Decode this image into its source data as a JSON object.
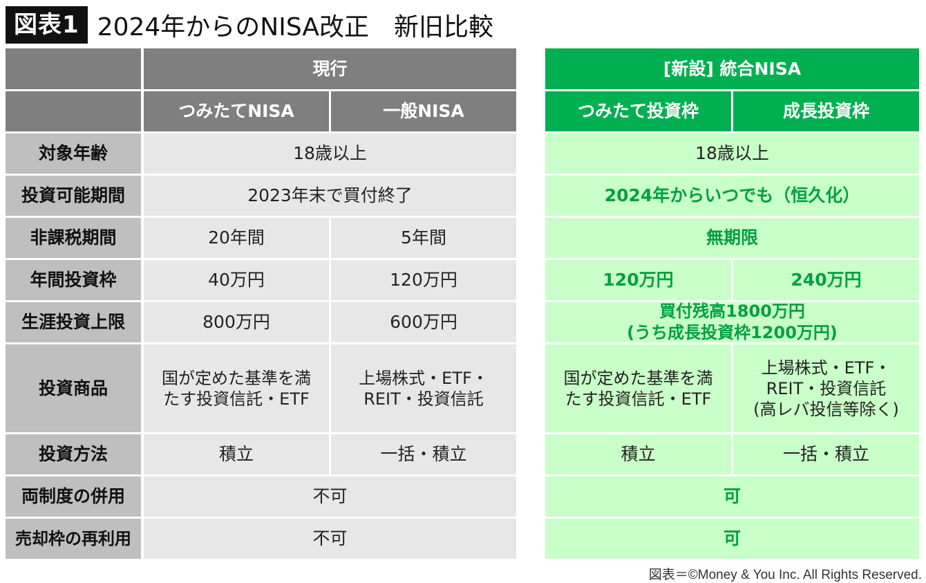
{
  "title": {
    "figure_label": "図表1",
    "text": "2024年からのNISA改正　新旧比較"
  },
  "header": {
    "current_group": "現行",
    "new_group": "[新設] 統合NISA",
    "current_tsumitate": "つみたてNISA",
    "current_ippan": "一般NISA",
    "new_tsumitate": "つみたて投資枠",
    "new_seicho": "成長投資枠"
  },
  "rows": [
    {
      "label": "対象年齢",
      "current": "18歳以上",
      "new": "18歳以上"
    },
    {
      "label": "投資可能期間",
      "current": "2023年末で買付終了",
      "new": "2024年からいつでも（恒久化）"
    },
    {
      "label": "非課税期間",
      "current_a": "20年間",
      "current_b": "5年間",
      "new": "無期限"
    },
    {
      "label": "年間投資枠",
      "current_a": "40万円",
      "current_b": "120万円",
      "new_a": "120万円",
      "new_b": "240万円"
    },
    {
      "label": "生涯投資上限",
      "current_a": "800万円",
      "current_b": "600万円",
      "new": "買付残高1800万円\n(うち成長投資枠1200万円)"
    },
    {
      "label": "投資商品",
      "current_a": "国が定めた基準を満\nたす投資信託・ETF",
      "current_b": "上場株式・ETF・\nREIT・投資信託",
      "new_a": "国が定めた基準を満\nたす投資信託・ETF",
      "new_b": "上場株式・ETF・\nREIT・投資信託\n(高レバ投信等除く)"
    },
    {
      "label": "投資方法",
      "current_a": "積立",
      "current_b": "一括・積立",
      "new_a": "積立",
      "new_b": "一括・積立"
    },
    {
      "label": "両制度の併用",
      "current": "不可",
      "new": "可"
    },
    {
      "label": "売却枠の再利用",
      "current": "不可",
      "new": "可"
    }
  ],
  "credit": "図表＝©Money & You Inc. All Rights Reserved.",
  "colors": {
    "gray_header": "#7f7f7f",
    "green_header": "#00b050",
    "row_label_bg": "#bfbfbf",
    "current_bg": "#e7e7e7",
    "new_bg": "#c9ffc9",
    "new_text_green": "#00a040"
  }
}
